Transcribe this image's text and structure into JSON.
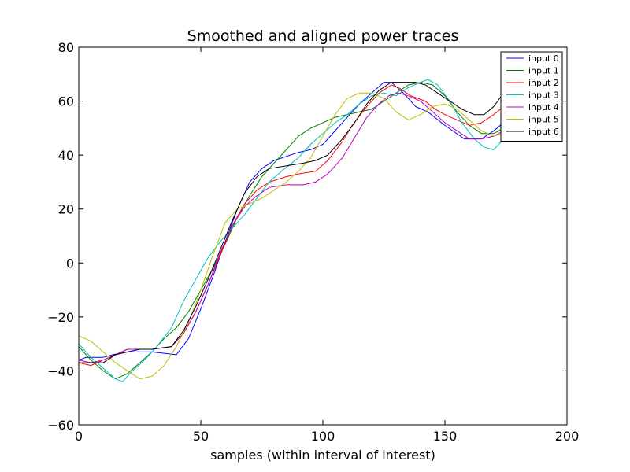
{
  "chart_data": {
    "type": "line",
    "title": "Smoothed and aligned power traces",
    "xlabel": "samples (within interval of interest)",
    "ylabel": "",
    "xlim": [
      0,
      200
    ],
    "ylim": [
      -60,
      80
    ],
    "xticks": [
      0,
      50,
      100,
      150,
      200
    ],
    "yticks": [
      -60,
      -40,
      -20,
      0,
      20,
      40,
      60,
      80
    ],
    "tick_labels_x": [
      "0",
      "50",
      "100",
      "150",
      "200"
    ],
    "tick_labels_y": [
      "−60",
      "−40",
      "−20",
      "0",
      "20",
      "40",
      "60",
      "80"
    ],
    "grid": false,
    "legend_position": "top-right",
    "series": [
      {
        "name": "input 0",
        "color": "#0000ff",
        "points": [
          [
            0,
            -36
          ],
          [
            3,
            -35
          ],
          [
            10,
            -35
          ],
          [
            14,
            -34
          ],
          [
            20,
            -33
          ],
          [
            30,
            -33
          ],
          [
            40,
            -34
          ],
          [
            45,
            -28
          ],
          [
            50,
            -17
          ],
          [
            55,
            -5
          ],
          [
            60,
            8
          ],
          [
            65,
            20
          ],
          [
            70,
            30
          ],
          [
            75,
            35
          ],
          [
            80,
            38
          ],
          [
            90,
            41
          ],
          [
            95,
            42
          ],
          [
            100,
            44
          ],
          [
            105,
            49
          ],
          [
            110,
            54
          ],
          [
            115,
            59
          ],
          [
            120,
            63
          ],
          [
            125,
            67
          ],
          [
            128,
            67
          ],
          [
            133,
            63
          ],
          [
            138,
            58
          ],
          [
            143,
            56
          ],
          [
            150,
            51
          ],
          [
            158,
            46
          ],
          [
            165,
            46
          ],
          [
            170,
            49
          ],
          [
            174,
            52
          ]
        ]
      },
      {
        "name": "input 1",
        "color": "#008000",
        "points": [
          [
            0,
            -31
          ],
          [
            5,
            -36
          ],
          [
            10,
            -40
          ],
          [
            15,
            -43
          ],
          [
            20,
            -41
          ],
          [
            25,
            -37
          ],
          [
            30,
            -33
          ],
          [
            35,
            -28
          ],
          [
            40,
            -24
          ],
          [
            45,
            -18
          ],
          [
            50,
            -10
          ],
          [
            55,
            -2
          ],
          [
            60,
            7
          ],
          [
            65,
            17
          ],
          [
            70,
            25
          ],
          [
            75,
            32
          ],
          [
            80,
            37
          ],
          [
            85,
            42
          ],
          [
            90,
            47
          ],
          [
            95,
            50
          ],
          [
            100,
            52
          ],
          [
            105,
            54
          ],
          [
            110,
            55
          ],
          [
            115,
            56
          ],
          [
            120,
            57
          ],
          [
            125,
            60
          ],
          [
            130,
            63
          ],
          [
            135,
            66
          ],
          [
            140,
            67
          ],
          [
            145,
            66
          ],
          [
            150,
            62
          ],
          [
            155,
            56
          ],
          [
            160,
            51
          ],
          [
            165,
            48
          ],
          [
            170,
            48
          ],
          [
            174,
            50
          ]
        ]
      },
      {
        "name": "input 2",
        "color": "#ff0000",
        "points": [
          [
            0,
            -37
          ],
          [
            5,
            -38
          ],
          [
            10,
            -36
          ],
          [
            15,
            -34
          ],
          [
            20,
            -32
          ],
          [
            30,
            -32
          ],
          [
            38,
            -31
          ],
          [
            43,
            -26
          ],
          [
            48,
            -18
          ],
          [
            53,
            -8
          ],
          [
            58,
            3
          ],
          [
            63,
            14
          ],
          [
            68,
            22
          ],
          [
            73,
            27
          ],
          [
            78,
            30
          ],
          [
            85,
            32
          ],
          [
            90,
            33
          ],
          [
            97,
            34
          ],
          [
            102,
            38
          ],
          [
            108,
            45
          ],
          [
            112,
            51
          ],
          [
            118,
            58
          ],
          [
            123,
            63
          ],
          [
            128,
            66
          ],
          [
            131,
            65
          ],
          [
            136,
            62
          ],
          [
            142,
            60
          ],
          [
            146,
            57
          ],
          [
            150,
            55
          ],
          [
            155,
            53
          ],
          [
            160,
            51
          ],
          [
            165,
            52
          ],
          [
            170,
            55
          ],
          [
            174,
            58
          ]
        ]
      },
      {
        "name": "input 3",
        "color": "#00bfbf",
        "points": [
          [
            0,
            -30
          ],
          [
            5,
            -35
          ],
          [
            10,
            -39
          ],
          [
            15,
            -43
          ],
          [
            18,
            -44
          ],
          [
            22,
            -40
          ],
          [
            27,
            -36
          ],
          [
            32,
            -31
          ],
          [
            38,
            -24
          ],
          [
            43,
            -14
          ],
          [
            48,
            -6
          ],
          [
            53,
            2
          ],
          [
            58,
            8
          ],
          [
            63,
            13
          ],
          [
            68,
            18
          ],
          [
            73,
            24
          ],
          [
            78,
            30
          ],
          [
            83,
            34
          ],
          [
            90,
            39
          ],
          [
            95,
            44
          ],
          [
            100,
            48
          ],
          [
            105,
            52
          ],
          [
            110,
            55
          ],
          [
            115,
            59
          ],
          [
            120,
            62
          ],
          [
            125,
            63
          ],
          [
            130,
            62
          ],
          [
            135,
            65
          ],
          [
            140,
            67
          ],
          [
            143,
            68
          ],
          [
            147,
            66
          ],
          [
            152,
            60
          ],
          [
            157,
            52
          ],
          [
            162,
            46
          ],
          [
            166,
            43
          ],
          [
            170,
            42
          ],
          [
            174,
            46
          ]
        ]
      },
      {
        "name": "input 4",
        "color": "#bf00bf",
        "points": [
          [
            0,
            -36
          ],
          [
            5,
            -37
          ],
          [
            10,
            -36
          ],
          [
            15,
            -34
          ],
          [
            20,
            -32
          ],
          [
            30,
            -32
          ],
          [
            38,
            -31
          ],
          [
            43,
            -26
          ],
          [
            48,
            -18
          ],
          [
            53,
            -8
          ],
          [
            58,
            4
          ],
          [
            63,
            14
          ],
          [
            68,
            21
          ],
          [
            73,
            25
          ],
          [
            78,
            28
          ],
          [
            85,
            29
          ],
          [
            92,
            29
          ],
          [
            97,
            30
          ],
          [
            102,
            33
          ],
          [
            108,
            39
          ],
          [
            112,
            45
          ],
          [
            118,
            54
          ],
          [
            123,
            59
          ],
          [
            127,
            62
          ],
          [
            131,
            63
          ],
          [
            135,
            62
          ],
          [
            140,
            60
          ],
          [
            145,
            56
          ],
          [
            150,
            52
          ],
          [
            155,
            49
          ],
          [
            160,
            46
          ],
          [
            165,
            46
          ],
          [
            170,
            47
          ],
          [
            174,
            49
          ]
        ]
      },
      {
        "name": "input 5",
        "color": "#bfbf00",
        "points": [
          [
            0,
            -27
          ],
          [
            5,
            -29
          ],
          [
            10,
            -33
          ],
          [
            15,
            -37
          ],
          [
            20,
            -40
          ],
          [
            25,
            -43
          ],
          [
            30,
            -42
          ],
          [
            35,
            -38
          ],
          [
            40,
            -31
          ],
          [
            45,
            -22
          ],
          [
            50,
            -10
          ],
          [
            55,
            3
          ],
          [
            60,
            15
          ],
          [
            65,
            20
          ],
          [
            70,
            22
          ],
          [
            75,
            24
          ],
          [
            80,
            27
          ],
          [
            85,
            30
          ],
          [
            90,
            34
          ],
          [
            95,
            39
          ],
          [
            100,
            47
          ],
          [
            105,
            55
          ],
          [
            110,
            61
          ],
          [
            115,
            63
          ],
          [
            120,
            63
          ],
          [
            125,
            61
          ],
          [
            130,
            56
          ],
          [
            135,
            53
          ],
          [
            140,
            55
          ],
          [
            145,
            58
          ],
          [
            150,
            59
          ],
          [
            155,
            57
          ],
          [
            160,
            53
          ],
          [
            165,
            49
          ],
          [
            170,
            47
          ],
          [
            174,
            48
          ]
        ]
      },
      {
        "name": "input 6",
        "color": "#000000",
        "points": [
          [
            0,
            -37
          ],
          [
            5,
            -37
          ],
          [
            10,
            -37
          ],
          [
            15,
            -34
          ],
          [
            20,
            -33
          ],
          [
            25,
            -32
          ],
          [
            30,
            -32
          ],
          [
            38,
            -31
          ],
          [
            43,
            -25
          ],
          [
            48,
            -16
          ],
          [
            53,
            -6
          ],
          [
            58,
            5
          ],
          [
            63,
            16
          ],
          [
            68,
            26
          ],
          [
            73,
            32
          ],
          [
            78,
            35
          ],
          [
            85,
            36
          ],
          [
            92,
            37
          ],
          [
            97,
            38
          ],
          [
            102,
            40
          ],
          [
            108,
            46
          ],
          [
            113,
            52
          ],
          [
            118,
            59
          ],
          [
            123,
            64
          ],
          [
            128,
            67
          ],
          [
            133,
            67
          ],
          [
            138,
            67
          ],
          [
            142,
            66
          ],
          [
            147,
            63
          ],
          [
            152,
            60
          ],
          [
            157,
            57
          ],
          [
            162,
            55
          ],
          [
            166,
            55
          ],
          [
            170,
            58
          ],
          [
            174,
            63
          ]
        ]
      }
    ]
  }
}
